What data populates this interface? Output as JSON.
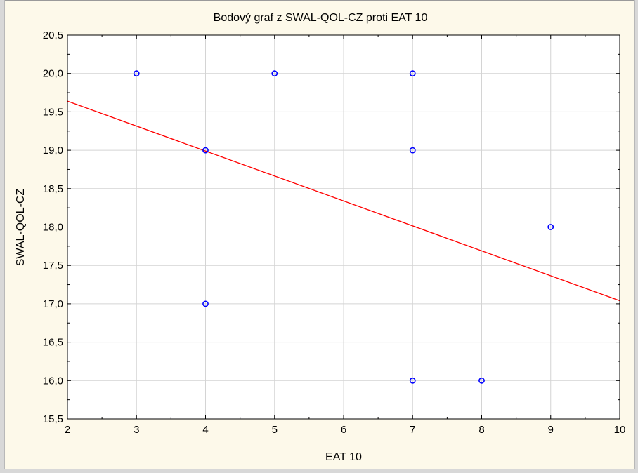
{
  "chart_data": {
    "type": "scatter",
    "title": "Bodový graf z SWAL-QOL-CZ proti EAT 10",
    "xlabel": "EAT 10",
    "ylabel": "SWAL-QOL-CZ",
    "xlim": [
      2,
      10
    ],
    "ylim": [
      15.5,
      20.5
    ],
    "x_ticks": [
      "2",
      "3",
      "4",
      "5",
      "6",
      "7",
      "8",
      "9",
      "10"
    ],
    "y_ticks": [
      "15,5",
      "16,0",
      "16,5",
      "17,0",
      "17,5",
      "18,0",
      "18,5",
      "19,0",
      "19,5",
      "20,0",
      "20,5"
    ],
    "grid": true,
    "points": [
      {
        "x": 3,
        "y": 20.0
      },
      {
        "x": 5,
        "y": 20.0
      },
      {
        "x": 7,
        "y": 20.0
      },
      {
        "x": 4,
        "y": 19.0
      },
      {
        "x": 7,
        "y": 19.0
      },
      {
        "x": 9,
        "y": 18.0
      },
      {
        "x": 4,
        "y": 17.0
      },
      {
        "x": 7,
        "y": 16.0
      },
      {
        "x": 8,
        "y": 16.0
      }
    ],
    "fit_line": {
      "x": [
        2,
        10
      ],
      "y": [
        19.64,
        17.04
      ]
    },
    "colors": {
      "points": "#0000ff",
      "fit_line": "#ff0000",
      "grid": "#d4d4d4",
      "background": "#fdf9ea",
      "plot_area": "#ffffff"
    }
  }
}
